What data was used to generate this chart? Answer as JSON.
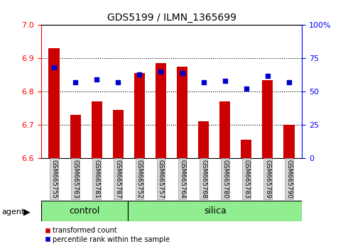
{
  "title": "GDS5199 / ILMN_1365699",
  "categories": [
    "GSM665755",
    "GSM665763",
    "GSM665781",
    "GSM665787",
    "GSM665752",
    "GSM665757",
    "GSM665764",
    "GSM665768",
    "GSM665780",
    "GSM665783",
    "GSM665789",
    "GSM665790"
  ],
  "bar_values": [
    6.93,
    6.73,
    6.77,
    6.745,
    6.855,
    6.885,
    6.875,
    6.71,
    6.77,
    6.655,
    6.835,
    6.7
  ],
  "percentile_values": [
    68,
    57,
    59,
    57,
    63,
    65,
    64,
    57,
    58,
    52,
    62,
    57
  ],
  "bar_color": "#cc0000",
  "dot_color": "#0000cc",
  "ylim_left": [
    6.6,
    7.0
  ],
  "ylim_right": [
    0,
    100
  ],
  "yticks_left": [
    6.6,
    6.7,
    6.8,
    6.9,
    7.0
  ],
  "yticks_right": [
    0,
    25,
    50,
    75,
    100
  ],
  "ytick_labels_right": [
    "0",
    "25",
    "50",
    "75",
    "100%"
  ],
  "control_count": 4,
  "silica_count": 8,
  "control_label": "control",
  "silica_label": "silica",
  "agent_label": "agent",
  "legend_bar_label": "transformed count",
  "legend_dot_label": "percentile rank within the sample",
  "bg_plot": "#ffffff",
  "bg_xticklabel": "#d3d3d3",
  "bg_control": "#90ee90",
  "bg_silica": "#90ee90",
  "bar_bottom": 6.6
}
